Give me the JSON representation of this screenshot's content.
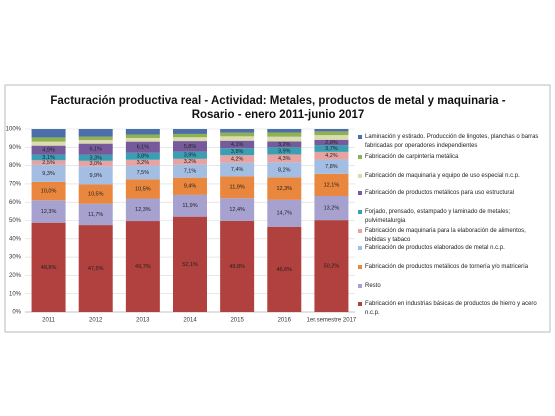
{
  "chart_data": {
    "type": "stacked_bar_percent",
    "title": "Facturación productiva real - Actividad: Metales, productos de metal y maquinaria - Rosario - enero 2011-junio 2017",
    "categories": [
      "2011",
      "2012",
      "2013",
      "2014",
      "2015",
      "2016",
      "1er.semestre 2017"
    ],
    "ylim": [
      0,
      100
    ],
    "yticks": [
      {
        "value": 0,
        "label": "0%"
      },
      {
        "value": 10,
        "label": "10%"
      },
      {
        "value": 20,
        "label": "20%"
      },
      {
        "value": 30,
        "label": "30%"
      },
      {
        "value": 40,
        "label": "40%"
      },
      {
        "value": 50,
        "label": "50%"
      },
      {
        "value": 60,
        "label": "60%"
      },
      {
        "value": 70,
        "label": "70%"
      },
      {
        "value": 80,
        "label": "80%"
      },
      {
        "value": 90,
        "label": "90%"
      },
      {
        "value": 100,
        "label": "100%"
      }
    ],
    "grid": true,
    "legend": "right",
    "series": [
      {
        "name": "Fabricación en industrias básicas de productos de hierro y acero n.c.p.",
        "color": "#b0413e",
        "values": [
          48.8,
          47.5,
          49.7,
          52.1,
          49.8,
          46.6,
          50.2
        ],
        "value_labels": [
          "48,8%",
          "47,5%",
          "49,7%",
          "52,1%",
          "49,8%",
          "46,6%",
          "50,2%"
        ]
      },
      {
        "name": "Resto",
        "color": "#a6a1cf",
        "values": [
          12.3,
          11.7,
          12.3,
          11.9,
          12.4,
          14.7,
          13.2
        ],
        "value_labels": [
          "12,3%",
          "11,7%",
          "12,3%",
          "11,9%",
          "12,4%",
          "14,7%",
          "13,2%"
        ]
      },
      {
        "name": "Fabricación de productos metálicos de tornería y/o matricería",
        "color": "#e8873d",
        "values": [
          10.0,
          10.5,
          10.5,
          9.4,
          11.9,
          12.3,
          12.1
        ],
        "value_labels": [
          "10,0%",
          "10,5%",
          "10,5%",
          "9,4%",
          "11,9%",
          "12,3%",
          "12,1%"
        ]
      },
      {
        "name": "Fabricación de productos elaborados de metal n.c.p.",
        "color": "#a4bde3",
        "values": [
          9.3,
          9.9,
          7.5,
          7.1,
          7.4,
          8.2,
          7.8
        ],
        "value_labels": [
          "9,3%",
          "9,9%",
          "7,5%",
          "7,1%",
          "7,4%",
          "8,2%",
          "7,8%"
        ]
      },
      {
        "name": "Fabricación de maquinaria para la elaboración de alimentos, bebidas y tabaco",
        "color": "#e7a3a1",
        "values": [
          2.5,
          3.0,
          3.2,
          3.2,
          4.2,
          4.3,
          4.2
        ],
        "value_labels": [
          "2,5%",
          "3,0%",
          "3,2%",
          "3,2%",
          "4,2%",
          "4,3%",
          "4,2%"
        ]
      },
      {
        "name": "Forjado, prensado, estampado y laminado de metales; pulvimetalurgia",
        "color": "#3a9fb3",
        "values": [
          3.1,
          3.3,
          3.8,
          3.9,
          3.8,
          3.9,
          3.7
        ],
        "value_labels": [
          "3,1%",
          "3,3%",
          "3,8%",
          "3,9%",
          "3,8%",
          "3,9%",
          "3,7%"
        ]
      },
      {
        "name": "Fabricación de productos metálicos para uso estructural",
        "color": "#765a9c",
        "values": [
          4.9,
          6.1,
          6.1,
          5.8,
          4.1,
          3.2,
          2.9
        ],
        "value_labels": [
          "4,9%",
          "6,1%",
          "6,1%",
          "5,8%",
          "4,1%",
          "3,2%",
          "2,9%"
        ]
      },
      {
        "name": "Fabricación de maquinaria y equipo de uso especial n.c.p.",
        "color": "#d9dcae",
        "values": [
          2.2,
          2.0,
          2.0,
          2.1,
          2.4,
          2.6,
          2.6
        ]
      },
      {
        "name": "Fabricación de carpintería metálica",
        "color": "#90b152",
        "values": [
          2.3,
          1.8,
          1.9,
          1.8,
          2.0,
          2.3,
          2.0
        ]
      },
      {
        "name": "Laminación y estirado. Producción de lingotes, planchas o barras fabricadas por operadores independientes",
        "color": "#4d6fa9",
        "values": [
          4.6,
          4.2,
          3.0,
          2.7,
          2.0,
          1.9,
          1.3
        ]
      }
    ]
  }
}
